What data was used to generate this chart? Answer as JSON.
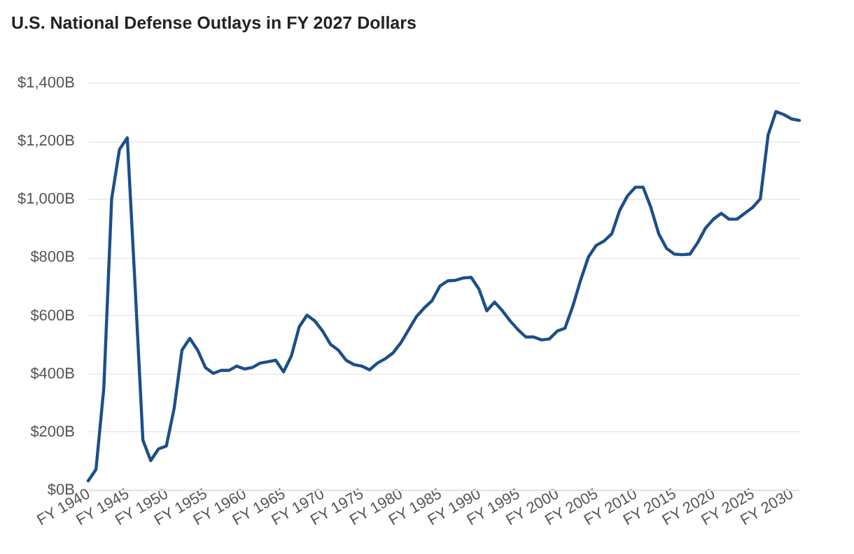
{
  "chart_data": {
    "type": "line",
    "title": "U.S. National Defense Outlays in FY 2027 Dollars",
    "categories": [
      "FY 1940",
      null,
      null,
      null,
      null,
      "FY 1945",
      null,
      null,
      null,
      null,
      "FY 1950",
      null,
      null,
      null,
      null,
      "FY 1955",
      null,
      null,
      null,
      null,
      "FY 1960",
      null,
      null,
      null,
      null,
      "FY 1965",
      null,
      null,
      null,
      null,
      "FY 1970",
      null,
      null,
      null,
      null,
      "FY 1975",
      null,
      null,
      null,
      null,
      "FY 1980",
      null,
      null,
      null,
      null,
      "FY 1985",
      null,
      null,
      null,
      null,
      "FY 1990",
      null,
      null,
      null,
      null,
      "FY 1995",
      null,
      null,
      null,
      null,
      "FY 2000",
      null,
      null,
      null,
      null,
      "FY 2005",
      null,
      null,
      null,
      null,
      "FY 2010",
      null,
      null,
      null,
      null,
      "FY 2015",
      null,
      null,
      null,
      null,
      "FY 2020",
      null,
      null,
      null,
      null,
      "FY 2025",
      null,
      null,
      null,
      null,
      "FY 2030",
      null
    ],
    "series": [
      {
        "color": "#1b4f8a",
        "values": [
          30,
          70,
          350,
          1000,
          1170,
          1210,
          700,
          170,
          100,
          140,
          150,
          280,
          480,
          520,
          480,
          420,
          400,
          410,
          410,
          425,
          415,
          420,
          435,
          440,
          445,
          405,
          460,
          560,
          600,
          580,
          545,
          500,
          480,
          445,
          430,
          425,
          412,
          435,
          450,
          470,
          505,
          550,
          595,
          625,
          650,
          700,
          718,
          720,
          728,
          730,
          690,
          615,
          645,
          615,
          580,
          550,
          525,
          525,
          515,
          518,
          545,
          555,
          630,
          720,
          800,
          840,
          855,
          880,
          960,
          1010,
          1040,
          1040,
          970,
          880,
          830,
          810,
          808,
          810,
          850,
          900,
          930,
          950,
          930,
          930,
          950,
          970,
          1000,
          1220,
          1300,
          1290,
          1275,
          1270
        ]
      }
    ],
    "ylim": [
      0,
      1400
    ],
    "yticks": [
      {
        "value": 0,
        "label": "$0B"
      },
      {
        "value": 200,
        "label": "$200B"
      },
      {
        "value": 400,
        "label": "$400B"
      },
      {
        "value": 600,
        "label": "$600B"
      },
      {
        "value": 800,
        "label": "$800B"
      },
      {
        "value": 1000,
        "label": "$1,000B"
      },
      {
        "value": 1200,
        "label": "$1,200B"
      },
      {
        "value": 1400,
        "label": "$1,400B"
      }
    ],
    "grid": "y",
    "line_style": "solid"
  }
}
